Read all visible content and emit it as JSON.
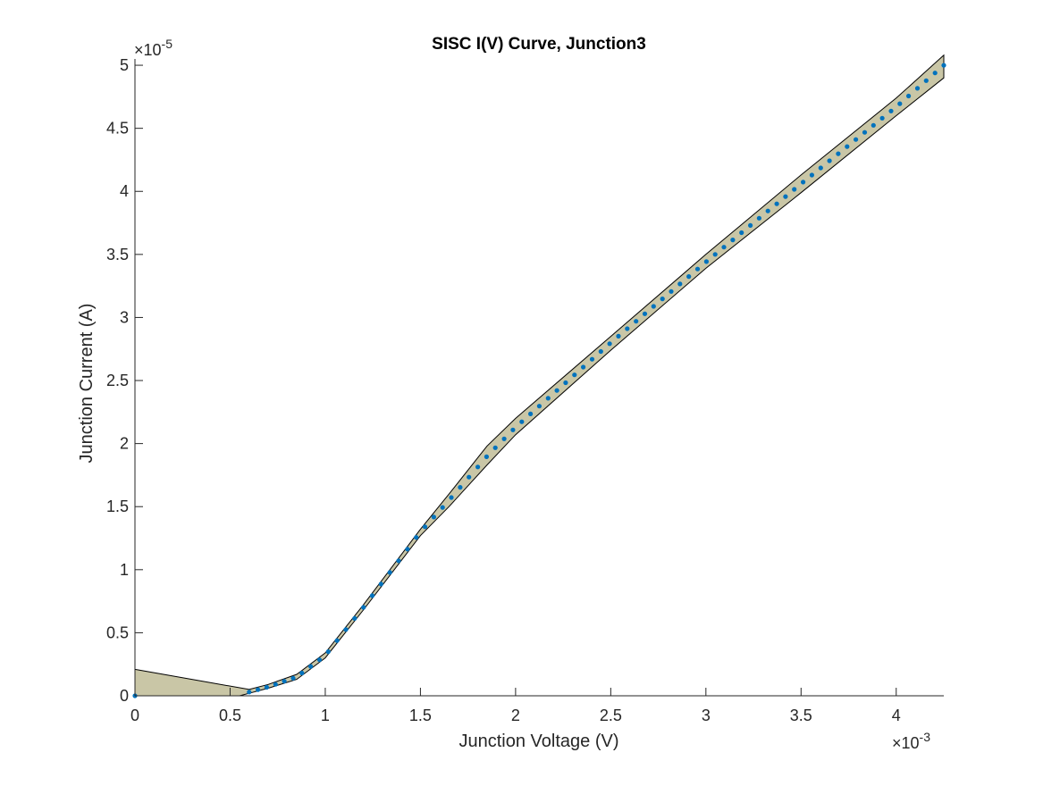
{
  "chart_data": {
    "type": "scatter",
    "title": "SISC I(V) Curve, Junction3",
    "xlabel": "Junction Voltage (V)",
    "ylabel": "Junction Current (A)",
    "x_exponent_label": "×10",
    "x_exponent_power": "-3",
    "y_exponent_label": "×10",
    "y_exponent_power": "-5",
    "x_scale": 0.001,
    "y_scale": 1e-05,
    "xlim": [
      0,
      4.25
    ],
    "ylim": [
      0,
      5.05
    ],
    "x_ticks": [
      {
        "value": 0,
        "label": "0"
      },
      {
        "value": 0.5,
        "label": "0.5"
      },
      {
        "value": 1,
        "label": "1"
      },
      {
        "value": 1.5,
        "label": "1.5"
      },
      {
        "value": 2,
        "label": "2"
      },
      {
        "value": 2.5,
        "label": "2.5"
      },
      {
        "value": 3,
        "label": "3"
      },
      {
        "value": 3.5,
        "label": "3.5"
      },
      {
        "value": 4,
        "label": "4"
      }
    ],
    "y_ticks": [
      {
        "value": 0,
        "label": "0"
      },
      {
        "value": 0.5,
        "label": "0.5"
      },
      {
        "value": 1,
        "label": "1"
      },
      {
        "value": 1.5,
        "label": "1.5"
      },
      {
        "value": 2,
        "label": "2"
      },
      {
        "value": 2.5,
        "label": "2.5"
      },
      {
        "value": 3,
        "label": "3"
      },
      {
        "value": 3.5,
        "label": "3.5"
      },
      {
        "value": 4,
        "label": "4"
      },
      {
        "value": 4.5,
        "label": "4.5"
      },
      {
        "value": 5,
        "label": "5"
      }
    ],
    "grid": false,
    "colors": {
      "points": "#0072BD",
      "band_fill": "#C9C6A6",
      "band_edge": "#000000",
      "axes": "#262626"
    },
    "band_upper": [
      [
        0,
        0.21
      ],
      [
        0.6,
        0.05
      ],
      [
        0.7,
        0.09
      ],
      [
        0.85,
        0.17
      ],
      [
        1.0,
        0.34
      ],
      [
        1.2,
        0.72
      ],
      [
        1.5,
        1.32
      ],
      [
        1.65,
        1.6
      ],
      [
        1.85,
        1.98
      ],
      [
        2.0,
        2.2
      ],
      [
        2.5,
        2.85
      ],
      [
        3.0,
        3.5
      ],
      [
        3.5,
        4.13
      ],
      [
        4.0,
        4.74
      ],
      [
        4.25,
        5.08
      ]
    ],
    "band_lower": [
      [
        4.25,
        4.9
      ],
      [
        4.0,
        4.6
      ],
      [
        3.5,
        3.99
      ],
      [
        3.0,
        3.39
      ],
      [
        2.5,
        2.74
      ],
      [
        2.0,
        2.07
      ],
      [
        1.85,
        1.83
      ],
      [
        1.65,
        1.5
      ],
      [
        1.5,
        1.27
      ],
      [
        1.2,
        0.68
      ],
      [
        1.0,
        0.3
      ],
      [
        0.85,
        0.13
      ],
      [
        0.7,
        0.06
      ],
      [
        0.6,
        0.02
      ],
      [
        0.55,
        0.0
      ],
      [
        0,
        0
      ]
    ],
    "series": [
      {
        "x_start": 0.6,
        "x_end": 4.25,
        "count": 80,
        "points": [
          [
            0,
            0.0
          ]
        ],
        "curve": [
          [
            0.6,
            0.03
          ],
          [
            0.7,
            0.07
          ],
          [
            0.85,
            0.15
          ],
          [
            1.0,
            0.32
          ],
          [
            1.2,
            0.7
          ],
          [
            1.5,
            1.3
          ],
          [
            1.65,
            1.55
          ],
          [
            1.85,
            1.9
          ],
          [
            2.0,
            2.13
          ],
          [
            2.5,
            2.8
          ],
          [
            3.0,
            3.44
          ],
          [
            3.5,
            4.06
          ],
          [
            4.0,
            4.67
          ],
          [
            4.25,
            5.0
          ]
        ]
      }
    ]
  }
}
